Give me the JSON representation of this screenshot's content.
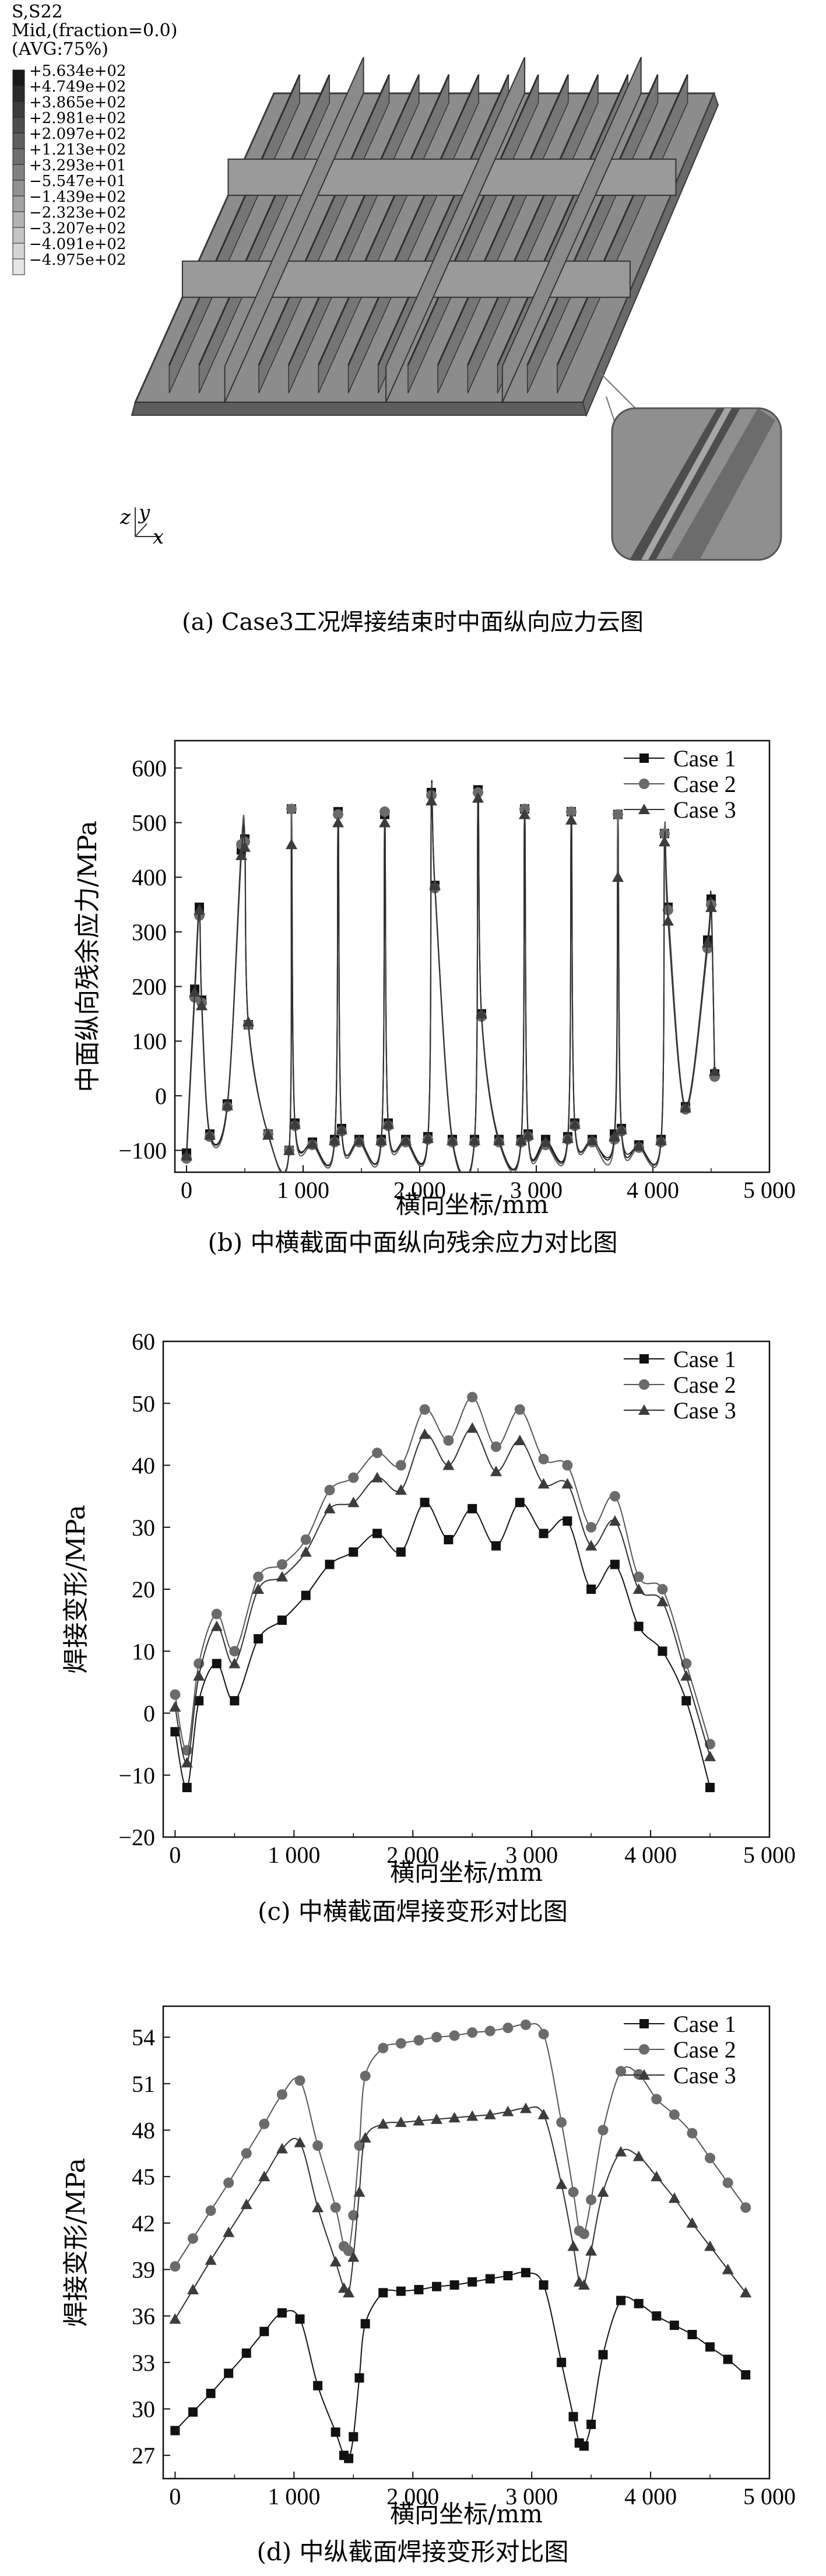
{
  "contour": {
    "header_line1": "S,S22",
    "header_line2": "Mid,(fraction=0.0)",
    "header_line3": "(AVG:75%)",
    "legend_values": [
      "+5.634e+02",
      "+4.749e+02",
      "+3.865e+02",
      "+2.981e+02",
      "+2.097e+02",
      "+1.213e+02",
      "+3.293e+01",
      "−5.547e+01",
      "−1.439e+02",
      "−2.323e+02",
      "−3.207e+02",
      "−4.091e+02",
      "−4.975e+02"
    ],
    "axis_z": "z",
    "axis_y": "y",
    "axis_x": "x",
    "caption": "(a) Case3工况焊接结束时中面纵向应力云图",
    "colors": {
      "plate": "#8c8c8c",
      "stiffener": "#6f6f6f",
      "edge": "#3a3a3a"
    }
  },
  "chart_data": [
    {
      "id": "b",
      "type": "line",
      "ylabel": "中面纵向残余应力/MPa",
      "xlabel": "横向坐标/mm",
      "caption": "(b) 中横截面中面纵向残余应力对比图",
      "xlim": [
        -100,
        5000
      ],
      "ylim": [
        -140,
        650
      ],
      "xticks": [
        0,
        1000,
        2000,
        3000,
        4000,
        5000
      ],
      "xtick_labels": [
        "0",
        "1 000",
        "2 000",
        "3 000",
        "4 000",
        "5 000"
      ],
      "yticks": [
        -100,
        0,
        100,
        200,
        300,
        400,
        500,
        600
      ],
      "ytick_labels": [
        "−100",
        "0",
        "100",
        "200",
        "300",
        "400",
        "500",
        "600"
      ],
      "legend_position": "top-right",
      "series": [
        {
          "name": "Case 1",
          "marker": "square",
          "x": [
            0,
            70,
            110,
            130,
            200,
            350,
            470,
            500,
            530,
            700,
            880,
            900,
            930,
            1080,
            1270,
            1300,
            1330,
            1480,
            1670,
            1700,
            1730,
            1880,
            2070,
            2100,
            2130,
            2280,
            2470,
            2500,
            2530,
            2680,
            2870,
            2900,
            2930,
            3080,
            3270,
            3300,
            3330,
            3480,
            3670,
            3700,
            3730,
            3880,
            4070,
            4100,
            4130,
            4280,
            4470,
            4500,
            4530
          ],
          "y": [
            -105,
            195,
            345,
            175,
            -70,
            -15,
            450,
            470,
            130,
            -70,
            -100,
            525,
            -50,
            -85,
            -80,
            520,
            -60,
            -80,
            -80,
            515,
            -50,
            -80,
            -75,
            555,
            385,
            -80,
            -80,
            560,
            150,
            -80,
            -80,
            525,
            -70,
            -80,
            -75,
            520,
            -50,
            -80,
            -70,
            515,
            -60,
            -90,
            -80,
            480,
            345,
            -20,
            285,
            360,
            40
          ]
        },
        {
          "name": "Case 2",
          "marker": "circle",
          "x": [
            0,
            70,
            110,
            130,
            200,
            350,
            470,
            500,
            530,
            700,
            880,
            900,
            930,
            1080,
            1270,
            1300,
            1330,
            1480,
            1670,
            1700,
            1730,
            1880,
            2070,
            2100,
            2130,
            2280,
            2470,
            2500,
            2530,
            2680,
            2870,
            2900,
            2930,
            3080,
            3270,
            3300,
            3330,
            3480,
            3670,
            3700,
            3730,
            3880,
            4070,
            4100,
            4130,
            4280,
            4470,
            4500,
            4530
          ],
          "y": [
            -115,
            180,
            330,
            170,
            -75,
            -20,
            460,
            465,
            130,
            -70,
            -100,
            525,
            -55,
            -90,
            -85,
            515,
            -65,
            -85,
            -85,
            520,
            -55,
            -85,
            -80,
            550,
            380,
            -85,
            -85,
            555,
            145,
            -85,
            -85,
            525,
            -75,
            -90,
            -80,
            520,
            -55,
            -85,
            -80,
            515,
            -65,
            -95,
            -85,
            480,
            340,
            -25,
            270,
            350,
            35
          ]
        },
        {
          "name": "Case 3",
          "marker": "triangle",
          "x": [
            0,
            70,
            110,
            130,
            200,
            350,
            470,
            500,
            530,
            700,
            880,
            900,
            930,
            1080,
            1270,
            1300,
            1330,
            1480,
            1670,
            1700,
            1730,
            1880,
            2070,
            2100,
            2130,
            2280,
            2470,
            2500,
            2530,
            2680,
            2870,
            2900,
            2930,
            3080,
            3270,
            3300,
            3330,
            3480,
            3670,
            3700,
            3730,
            3880,
            4070,
            4100,
            4130,
            4280,
            4470,
            4500,
            4530
          ],
          "y": [
            -110,
            190,
            340,
            165,
            -72,
            -18,
            440,
            455,
            135,
            -72,
            -100,
            460,
            -52,
            -88,
            -82,
            500,
            -62,
            -82,
            -82,
            500,
            -52,
            -82,
            -78,
            540,
            385,
            -82,
            -82,
            545,
            150,
            -82,
            -82,
            515,
            -72,
            -85,
            -78,
            505,
            -52,
            -82,
            -75,
            400,
            -62,
            -92,
            -82,
            465,
            320,
            -22,
            280,
            345,
            45
          ]
        }
      ]
    },
    {
      "id": "c",
      "type": "line",
      "ylabel": "焊接变形/MPa",
      "xlabel": "横向坐标/mm",
      "caption": "(c) 中横截面焊接变形对比图",
      "xlim": [
        -100,
        5000
      ],
      "ylim": [
        -20,
        60
      ],
      "xticks": [
        0,
        1000,
        2000,
        3000,
        4000,
        5000
      ],
      "xtick_labels": [
        "0",
        "1 000",
        "2 000",
        "3 000",
        "4 000",
        "5 000"
      ],
      "yticks": [
        -20,
        -10,
        0,
        10,
        20,
        30,
        40,
        50,
        60
      ],
      "ytick_labels": [
        "−20",
        "−10",
        "0",
        "10",
        "20",
        "30",
        "40",
        "50",
        "60"
      ],
      "legend_position": "top-right",
      "series": [
        {
          "name": "Case 1",
          "marker": "square",
          "x": [
            0,
            100,
            200,
            350,
            500,
            700,
            900,
            1100,
            1300,
            1500,
            1700,
            1900,
            2100,
            2300,
            2500,
            2700,
            2900,
            3100,
            3300,
            3500,
            3700,
            3900,
            4100,
            4300,
            4500
          ],
          "y": [
            -3,
            -12,
            2,
            8,
            2,
            12,
            15,
            19,
            24,
            26,
            29,
            26,
            34,
            28,
            33,
            27,
            34,
            29,
            31,
            20,
            24,
            14,
            10,
            2,
            -12
          ]
        },
        {
          "name": "Case 2",
          "marker": "circle",
          "x": [
            0,
            100,
            200,
            350,
            500,
            700,
            900,
            1100,
            1300,
            1500,
            1700,
            1900,
            2100,
            2300,
            2500,
            2700,
            2900,
            3100,
            3300,
            3500,
            3700,
            3900,
            4100,
            4300,
            4500
          ],
          "y": [
            3,
            -6,
            8,
            16,
            10,
            22,
            24,
            28,
            36,
            38,
            42,
            40,
            49,
            44,
            51,
            43,
            49,
            41,
            40,
            30,
            35,
            22,
            20,
            8,
            -5
          ]
        },
        {
          "name": "Case 3",
          "marker": "triangle",
          "x": [
            0,
            100,
            200,
            350,
            500,
            700,
            900,
            1100,
            1300,
            1500,
            1700,
            1900,
            2100,
            2300,
            2500,
            2700,
            2900,
            3100,
            3300,
            3500,
            3700,
            3900,
            4100,
            4300,
            4500
          ],
          "y": [
            1,
            -8,
            6,
            14,
            8,
            20,
            22,
            26,
            33,
            34,
            38,
            36,
            45,
            40,
            46,
            39,
            44,
            37,
            37,
            27,
            31,
            20,
            18,
            6,
            -7
          ]
        }
      ]
    },
    {
      "id": "d",
      "type": "line",
      "ylabel": "焊接变形/MPa",
      "xlabel": "横向坐标/mm",
      "caption": "(d) 中纵截面焊接变形对比图",
      "xlim": [
        -100,
        5000
      ],
      "ylim": [
        25.5,
        56
      ],
      "xticks": [
        0,
        1000,
        2000,
        3000,
        4000,
        5000
      ],
      "xtick_labels": [
        "0",
        "1 000",
        "2 000",
        "3 000",
        "4 000",
        "5 000"
      ],
      "yticks": [
        27,
        30,
        33,
        36,
        39,
        42,
        45,
        48,
        51,
        54
      ],
      "ytick_labels": [
        "27",
        "30",
        "33",
        "36",
        "39",
        "42",
        "45",
        "48",
        "51",
        "54"
      ],
      "legend_position": "top-right",
      "series": [
        {
          "name": "Case 1",
          "marker": "square",
          "x": [
            0,
            150,
            300,
            450,
            600,
            750,
            900,
            1050,
            1200,
            1350,
            1420,
            1460,
            1500,
            1550,
            1600,
            1750,
            1900,
            2050,
            2200,
            2350,
            2500,
            2650,
            2800,
            2950,
            3100,
            3250,
            3350,
            3400,
            3440,
            3500,
            3600,
            3750,
            3900,
            4050,
            4200,
            4350,
            4500,
            4650,
            4800
          ],
          "y": [
            28.6,
            29.8,
            31.0,
            32.3,
            33.6,
            35.0,
            36.2,
            35.8,
            31.5,
            28.5,
            27.0,
            26.8,
            28.2,
            32.0,
            35.5,
            37.5,
            37.6,
            37.7,
            37.9,
            38.0,
            38.2,
            38.4,
            38.6,
            38.8,
            38.0,
            33.0,
            29.5,
            27.8,
            27.6,
            29.0,
            33.5,
            37.0,
            36.8,
            36.0,
            35.4,
            34.8,
            34.0,
            33.2,
            32.2
          ]
        },
        {
          "name": "Case 2",
          "marker": "circle",
          "x": [
            0,
            150,
            300,
            450,
            600,
            750,
            900,
            1050,
            1200,
            1350,
            1420,
            1460,
            1500,
            1550,
            1600,
            1750,
            1900,
            2050,
            2200,
            2350,
            2500,
            2650,
            2800,
            2950,
            3100,
            3250,
            3350,
            3400,
            3440,
            3500,
            3600,
            3750,
            3900,
            4050,
            4200,
            4350,
            4500,
            4650,
            4800
          ],
          "y": [
            39.2,
            41.0,
            42.8,
            44.6,
            46.5,
            48.4,
            50.3,
            51.2,
            47.0,
            43.0,
            40.5,
            40.2,
            42.5,
            47.0,
            51.5,
            53.3,
            53.6,
            53.8,
            54.0,
            54.1,
            54.3,
            54.4,
            54.6,
            54.8,
            54.2,
            48.5,
            44.0,
            41.5,
            41.3,
            43.5,
            48.0,
            51.8,
            51.6,
            50.0,
            49.0,
            47.8,
            46.2,
            44.6,
            43.0
          ]
        },
        {
          "name": "Case 3",
          "marker": "triangle",
          "x": [
            0,
            150,
            300,
            450,
            600,
            750,
            900,
            1050,
            1200,
            1350,
            1420,
            1460,
            1500,
            1550,
            1600,
            1750,
            1900,
            2050,
            2200,
            2350,
            2500,
            2650,
            2800,
            2950,
            3100,
            3250,
            3350,
            3400,
            3440,
            3500,
            3600,
            3750,
            3900,
            4050,
            4200,
            4350,
            4500,
            4650,
            4800
          ],
          "y": [
            35.8,
            37.7,
            39.6,
            41.4,
            43.2,
            45.0,
            46.8,
            47.2,
            43.0,
            39.5,
            37.8,
            37.5,
            39.8,
            44.0,
            47.5,
            48.4,
            48.5,
            48.6,
            48.7,
            48.8,
            48.9,
            49.0,
            49.2,
            49.4,
            49.0,
            44.5,
            40.5,
            38.2,
            38.0,
            40.2,
            44.0,
            46.6,
            46.3,
            45.0,
            43.6,
            42.0,
            40.5,
            39.0,
            37.5
          ]
        }
      ]
    }
  ]
}
